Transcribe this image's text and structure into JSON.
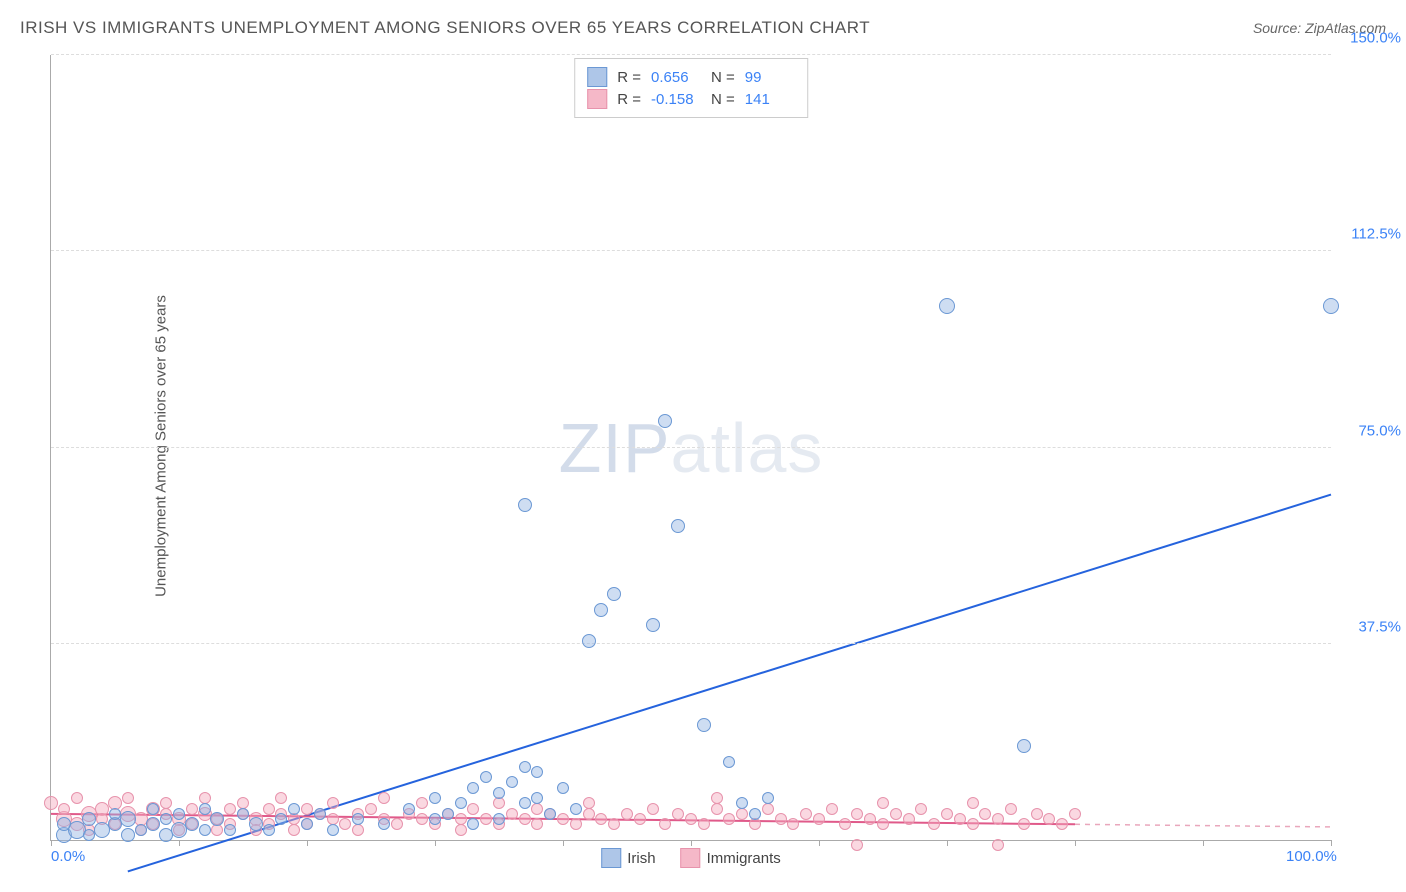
{
  "title": "IRISH VS IMMIGRANTS UNEMPLOYMENT AMONG SENIORS OVER 65 YEARS CORRELATION CHART",
  "source": "Source: ZipAtlas.com",
  "ylabel": "Unemployment Among Seniors over 65 years",
  "watermark_a": "ZIP",
  "watermark_b": "atlas",
  "chart": {
    "type": "scatter",
    "xlim": [
      0,
      100
    ],
    "ylim": [
      0,
      150
    ],
    "xticks": [
      0,
      10,
      20,
      30,
      40,
      50,
      60,
      70,
      80,
      90,
      100
    ],
    "xtick_labels": {
      "0": "0.0%",
      "100": "100.0%"
    },
    "yticks": [
      37.5,
      75.0,
      112.5,
      150.0
    ],
    "ytick_labels": [
      "37.5%",
      "75.0%",
      "112.5%",
      "150.0%"
    ],
    "grid_color": "#dddddd",
    "axis_color": "#aaaaaa",
    "label_color": "#3b82f6",
    "background_color": "#ffffff",
    "marker_radius": 8
  },
  "series": {
    "irish": {
      "name": "Irish",
      "fill": "rgba(147,180,227,0.45)",
      "stroke": "#6b98d4",
      "swatch_fill": "#aec6e8",
      "swatch_border": "#6b98d4",
      "R": "0.656",
      "N": "99",
      "trend": {
        "x1": 6,
        "y1": -6,
        "x2": 100,
        "y2": 66,
        "color": "#2563dd",
        "width": 2
      },
      "points": [
        [
          1,
          1,
          14
        ],
        [
          1,
          3,
          12
        ],
        [
          2,
          2,
          16
        ],
        [
          3,
          4,
          12
        ],
        [
          3,
          1,
          10
        ],
        [
          4,
          2,
          14
        ],
        [
          5,
          3,
          12
        ],
        [
          5,
          5,
          10
        ],
        [
          6,
          1,
          12
        ],
        [
          6,
          4,
          14
        ],
        [
          7,
          2,
          10
        ],
        [
          8,
          3,
          12
        ],
        [
          8,
          6,
          10
        ],
        [
          9,
          1,
          12
        ],
        [
          9,
          4,
          10
        ],
        [
          10,
          2,
          14
        ],
        [
          10,
          5,
          10
        ],
        [
          11,
          3,
          12
        ],
        [
          12,
          2,
          10
        ],
        [
          12,
          6,
          10
        ],
        [
          13,
          4,
          12
        ],
        [
          14,
          2,
          10
        ],
        [
          15,
          5,
          10
        ],
        [
          16,
          3,
          12
        ],
        [
          17,
          2,
          10
        ],
        [
          18,
          4,
          10
        ],
        [
          19,
          6,
          10
        ],
        [
          20,
          3,
          10
        ],
        [
          21,
          5,
          10
        ],
        [
          22,
          2,
          10
        ],
        [
          24,
          4,
          10
        ],
        [
          26,
          3,
          10
        ],
        [
          28,
          6,
          10
        ],
        [
          30,
          4,
          10
        ],
        [
          30,
          8,
          10
        ],
        [
          31,
          5,
          10
        ],
        [
          32,
          7,
          10
        ],
        [
          33,
          10,
          10
        ],
        [
          33,
          3,
          10
        ],
        [
          34,
          12,
          10
        ],
        [
          35,
          9,
          10
        ],
        [
          35,
          4,
          10
        ],
        [
          36,
          11,
          10
        ],
        [
          37,
          14,
          10
        ],
        [
          37,
          7,
          10
        ],
        [
          38,
          8,
          10
        ],
        [
          38,
          13,
          10
        ],
        [
          39,
          5,
          10
        ],
        [
          40,
          10,
          10
        ],
        [
          41,
          6,
          10
        ],
        [
          37,
          64,
          12
        ],
        [
          42,
          38,
          12
        ],
        [
          43,
          44,
          12
        ],
        [
          44,
          47,
          12
        ],
        [
          47,
          41,
          12
        ],
        [
          48,
          80,
          12
        ],
        [
          49,
          60,
          12
        ],
        [
          51,
          22,
          12
        ],
        [
          53,
          15,
          10
        ],
        [
          54,
          7,
          10
        ],
        [
          55,
          5,
          10
        ],
        [
          56,
          8,
          10
        ],
        [
          70,
          102,
          14
        ],
        [
          76,
          18,
          12
        ],
        [
          100,
          102,
          14
        ]
      ]
    },
    "immigrants": {
      "name": "Immigrants",
      "fill": "rgba(244,168,188,0.45)",
      "stroke": "#e793ac",
      "swatch_fill": "#f5b8c8",
      "swatch_border": "#e793ac",
      "R": "-0.158",
      "N": "141",
      "trend_solid": {
        "x1": 0,
        "y1": 5,
        "x2": 80,
        "y2": 3,
        "color": "#e05a8a",
        "width": 2
      },
      "trend_dash": {
        "x1": 80,
        "y1": 3,
        "x2": 100,
        "y2": 2.5,
        "color": "#e9a7bc",
        "width": 1.5
      },
      "points": [
        [
          0,
          7,
          12
        ],
        [
          1,
          4,
          14
        ],
        [
          1,
          6,
          10
        ],
        [
          2,
          3,
          12
        ],
        [
          2,
          8,
          10
        ],
        [
          3,
          5,
          14
        ],
        [
          3,
          2,
          10
        ],
        [
          4,
          6,
          12
        ],
        [
          4,
          4,
          10
        ],
        [
          5,
          7,
          12
        ],
        [
          5,
          3,
          10
        ],
        [
          6,
          5,
          14
        ],
        [
          6,
          8,
          10
        ],
        [
          7,
          4,
          12
        ],
        [
          7,
          2,
          10
        ],
        [
          8,
          6,
          12
        ],
        [
          8,
          3,
          10
        ],
        [
          9,
          5,
          10
        ],
        [
          9,
          7,
          10
        ],
        [
          10,
          4,
          12
        ],
        [
          10,
          2,
          10
        ],
        [
          11,
          6,
          10
        ],
        [
          11,
          3,
          10
        ],
        [
          12,
          5,
          12
        ],
        [
          12,
          8,
          10
        ],
        [
          13,
          4,
          10
        ],
        [
          13,
          2,
          10
        ],
        [
          14,
          6,
          10
        ],
        [
          14,
          3,
          10
        ],
        [
          15,
          5,
          10
        ],
        [
          15,
          7,
          10
        ],
        [
          16,
          4,
          12
        ],
        [
          16,
          2,
          10
        ],
        [
          17,
          6,
          10
        ],
        [
          17,
          3,
          10
        ],
        [
          18,
          5,
          10
        ],
        [
          18,
          8,
          10
        ],
        [
          19,
          4,
          10
        ],
        [
          19,
          2,
          10
        ],
        [
          20,
          6,
          10
        ],
        [
          20,
          3,
          10
        ],
        [
          21,
          5,
          10
        ],
        [
          22,
          4,
          10
        ],
        [
          22,
          7,
          10
        ],
        [
          23,
          3,
          10
        ],
        [
          24,
          5,
          10
        ],
        [
          24,
          2,
          10
        ],
        [
          25,
          6,
          10
        ],
        [
          26,
          4,
          10
        ],
        [
          26,
          8,
          10
        ],
        [
          27,
          3,
          10
        ],
        [
          28,
          5,
          10
        ],
        [
          29,
          4,
          10
        ],
        [
          29,
          7,
          10
        ],
        [
          30,
          3,
          10
        ],
        [
          31,
          5,
          10
        ],
        [
          32,
          4,
          10
        ],
        [
          32,
          2,
          10
        ],
        [
          33,
          6,
          10
        ],
        [
          34,
          4,
          10
        ],
        [
          35,
          3,
          10
        ],
        [
          35,
          7,
          10
        ],
        [
          36,
          5,
          10
        ],
        [
          37,
          4,
          10
        ],
        [
          38,
          3,
          10
        ],
        [
          38,
          6,
          10
        ],
        [
          39,
          5,
          10
        ],
        [
          40,
          4,
          10
        ],
        [
          41,
          3,
          10
        ],
        [
          42,
          5,
          10
        ],
        [
          42,
          7,
          10
        ],
        [
          43,
          4,
          10
        ],
        [
          44,
          3,
          10
        ],
        [
          45,
          5,
          10
        ],
        [
          46,
          4,
          10
        ],
        [
          47,
          6,
          10
        ],
        [
          48,
          3,
          10
        ],
        [
          49,
          5,
          10
        ],
        [
          50,
          4,
          10
        ],
        [
          51,
          3,
          10
        ],
        [
          52,
          6,
          10
        ],
        [
          52,
          8,
          10
        ],
        [
          53,
          4,
          10
        ],
        [
          54,
          5,
          10
        ],
        [
          55,
          3,
          10
        ],
        [
          56,
          6,
          10
        ],
        [
          57,
          4,
          10
        ],
        [
          58,
          3,
          10
        ],
        [
          59,
          5,
          10
        ],
        [
          60,
          4,
          10
        ],
        [
          61,
          6,
          10
        ],
        [
          62,
          3,
          10
        ],
        [
          63,
          5,
          10
        ],
        [
          63,
          -1,
          10
        ],
        [
          64,
          4,
          10
        ],
        [
          65,
          3,
          10
        ],
        [
          65,
          7,
          10
        ],
        [
          66,
          5,
          10
        ],
        [
          67,
          4,
          10
        ],
        [
          68,
          6,
          10
        ],
        [
          69,
          3,
          10
        ],
        [
          70,
          5,
          10
        ],
        [
          71,
          4,
          10
        ],
        [
          72,
          3,
          10
        ],
        [
          72,
          7,
          10
        ],
        [
          73,
          5,
          10
        ],
        [
          74,
          4,
          10
        ],
        [
          74,
          -1,
          10
        ],
        [
          75,
          6,
          10
        ],
        [
          76,
          3,
          10
        ],
        [
          77,
          5,
          10
        ],
        [
          78,
          4,
          10
        ],
        [
          79,
          3,
          10
        ],
        [
          80,
          5,
          10
        ]
      ]
    }
  },
  "stats_labels": {
    "R": "R =",
    "N": "N ="
  },
  "legend_irish": "Irish",
  "legend_immigrants": "Immigrants"
}
